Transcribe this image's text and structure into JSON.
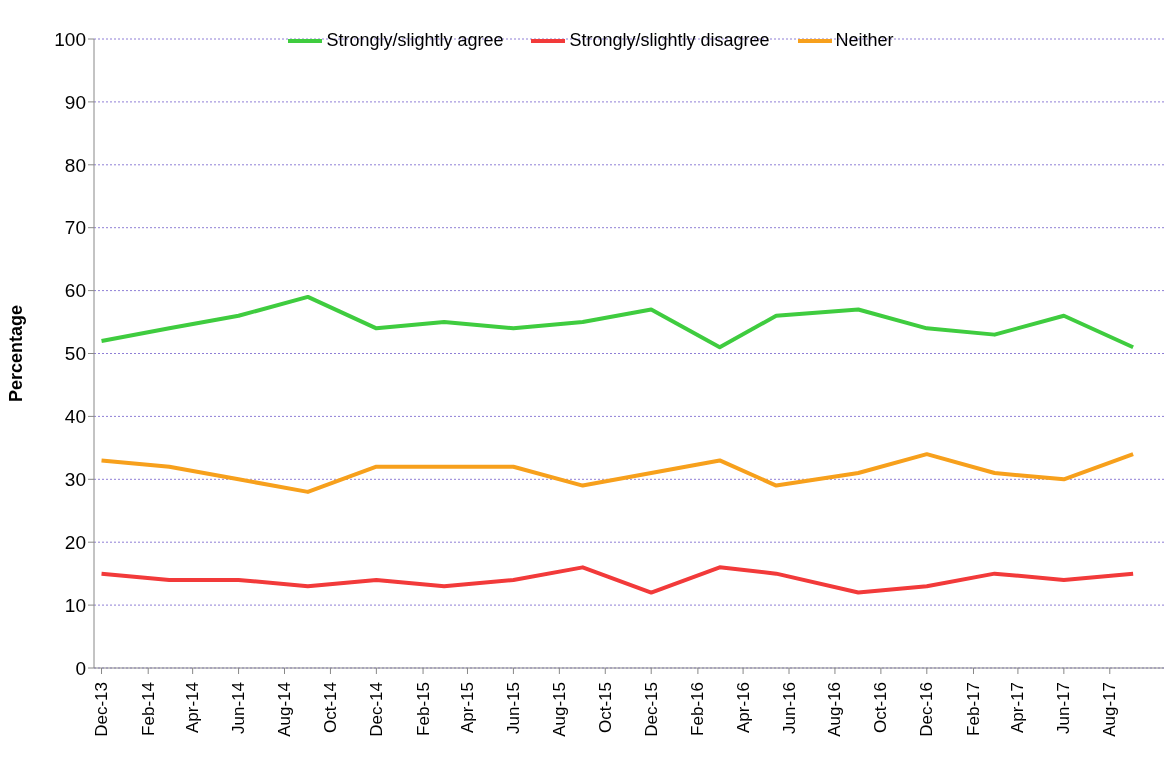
{
  "chart_data": {
    "type": "line",
    "ylabel": "Percentage",
    "x": [
      "2013-12",
      "2014-03",
      "2014-06",
      "2014-09",
      "2014-12",
      "2015-03",
      "2015-06",
      "2015-09",
      "2015-12",
      "2016-03",
      "2016-05-15",
      "2016-09",
      "2016-12",
      "2017-03",
      "2017-06",
      "2017-09"
    ],
    "series": [
      {
        "name": "Strongly/slightly agree",
        "color": "#3fcc3f",
        "values": [
          52,
          54,
          56,
          59,
          54,
          55,
          54,
          55,
          57,
          51,
          56,
          57,
          54,
          53,
          56,
          51
        ]
      },
      {
        "name": "Strongly/slightly disagree",
        "color": "#f23a3a",
        "values": [
          15,
          14,
          14,
          13,
          14,
          13,
          14,
          16,
          12,
          16,
          15,
          12,
          13,
          15,
          14,
          15
        ]
      },
      {
        "name": "Neither",
        "color": "#f7a01c",
        "values": [
          33,
          32,
          30,
          28,
          32,
          32,
          32,
          29,
          31,
          33,
          29,
          31,
          34,
          31,
          30,
          34
        ]
      }
    ],
    "xlim": [
      "2013-11-21",
      "2017-10-12"
    ],
    "xticks": [
      {
        "value": "2013-12",
        "label": "Dec-13"
      },
      {
        "value": "2014-02",
        "label": "Feb-14"
      },
      {
        "value": "2014-04",
        "label": "Apr-14"
      },
      {
        "value": "2014-06",
        "label": "Jun-14"
      },
      {
        "value": "2014-08",
        "label": "Aug-14"
      },
      {
        "value": "2014-10",
        "label": "Oct-14"
      },
      {
        "value": "2014-12",
        "label": "Dec-14"
      },
      {
        "value": "2015-02",
        "label": "Feb-15"
      },
      {
        "value": "2015-04",
        "label": "Apr-15"
      },
      {
        "value": "2015-06",
        "label": "Jun-15"
      },
      {
        "value": "2015-08",
        "label": "Aug-15"
      },
      {
        "value": "2015-10",
        "label": "Oct-15"
      },
      {
        "value": "2015-12",
        "label": "Dec-15"
      },
      {
        "value": "2016-02",
        "label": "Feb-16"
      },
      {
        "value": "2016-04",
        "label": "Apr-16"
      },
      {
        "value": "2016-06",
        "label": "Jun-16"
      },
      {
        "value": "2016-08",
        "label": "Aug-16"
      },
      {
        "value": "2016-10",
        "label": "Oct-16"
      },
      {
        "value": "2016-12",
        "label": "Dec-16"
      },
      {
        "value": "2017-02",
        "label": "Feb-17"
      },
      {
        "value": "2017-04",
        "label": "Apr-17"
      },
      {
        "value": "2017-06",
        "label": "Jun-17"
      },
      {
        "value": "2017-08",
        "label": "Aug-17"
      }
    ],
    "ylim": [
      0,
      100
    ],
    "yticks": [
      0,
      10,
      20,
      30,
      40,
      50,
      60,
      70,
      80,
      90,
      100
    ],
    "grid": "y",
    "legend": "top",
    "marker": "none",
    "line_style": "solid"
  }
}
